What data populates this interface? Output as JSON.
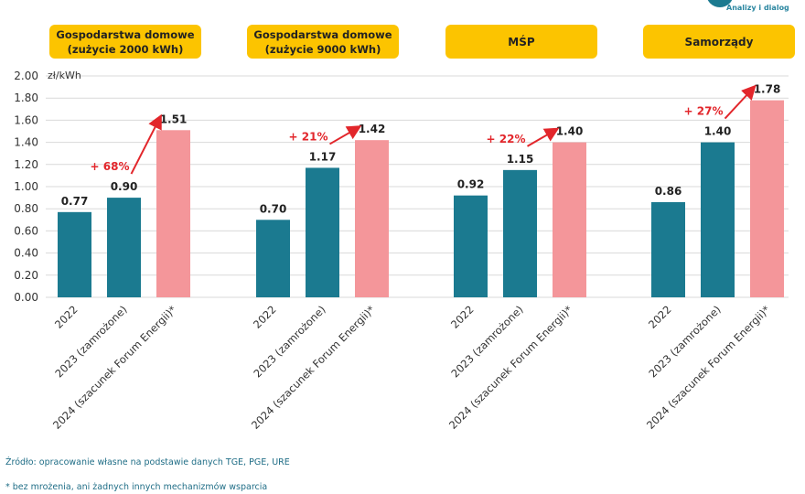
{
  "logo": {
    "tagline": "Analizy i dialog"
  },
  "chart_data": {
    "type": "bar",
    "ylabel": "zł/kWh",
    "ylim": [
      0,
      2.0
    ],
    "yticks": [
      "0.00",
      "0.20",
      "0.40",
      "0.60",
      "0.80",
      "1.00",
      "1.20",
      "1.40",
      "1.60",
      "1.80",
      "2.00"
    ],
    "categories": [
      "2022",
      "2023 (zamrożone)",
      "2024 (szacunek Forum Energii)*"
    ],
    "colors": {
      "bar_2022": "#1b7a90",
      "bar_2023": "#1b7a90",
      "bar_2024": "#f4969a",
      "header_bg": "#fcc400",
      "arrow": "#e2262b",
      "grid": "#d9d9d9"
    },
    "groups": [
      {
        "header": [
          "Gospodarstwa domowe",
          "(zużycie 2000 kWh)"
        ],
        "values": [
          0.77,
          0.9,
          1.51
        ],
        "labels": [
          "0.77",
          "0.90",
          "1.51"
        ],
        "change": "+ 68%"
      },
      {
        "header": [
          "Gospodarstwa domowe",
          "(zużycie 9000 kWh)"
        ],
        "values": [
          0.7,
          1.17,
          1.42
        ],
        "labels": [
          "0.70",
          "1.17",
          "1.42"
        ],
        "change": "+ 21%"
      },
      {
        "header": [
          "MŚP"
        ],
        "values": [
          0.92,
          1.15,
          1.4
        ],
        "labels": [
          "0.92",
          "1.15",
          "1.40"
        ],
        "change": "+ 22%"
      },
      {
        "header": [
          "Samorządy"
        ],
        "values": [
          0.86,
          1.4,
          1.78
        ],
        "labels": [
          "0.86",
          "1.40",
          "1.78"
        ],
        "change": "+ 27%"
      }
    ]
  },
  "footnotes": {
    "source": "Źródło: opracowanie własne na podstawie danych TGE, PGE, URE",
    "note": "* bez mrożenia, ani żadnych innych mechanizmów wsparcia"
  }
}
